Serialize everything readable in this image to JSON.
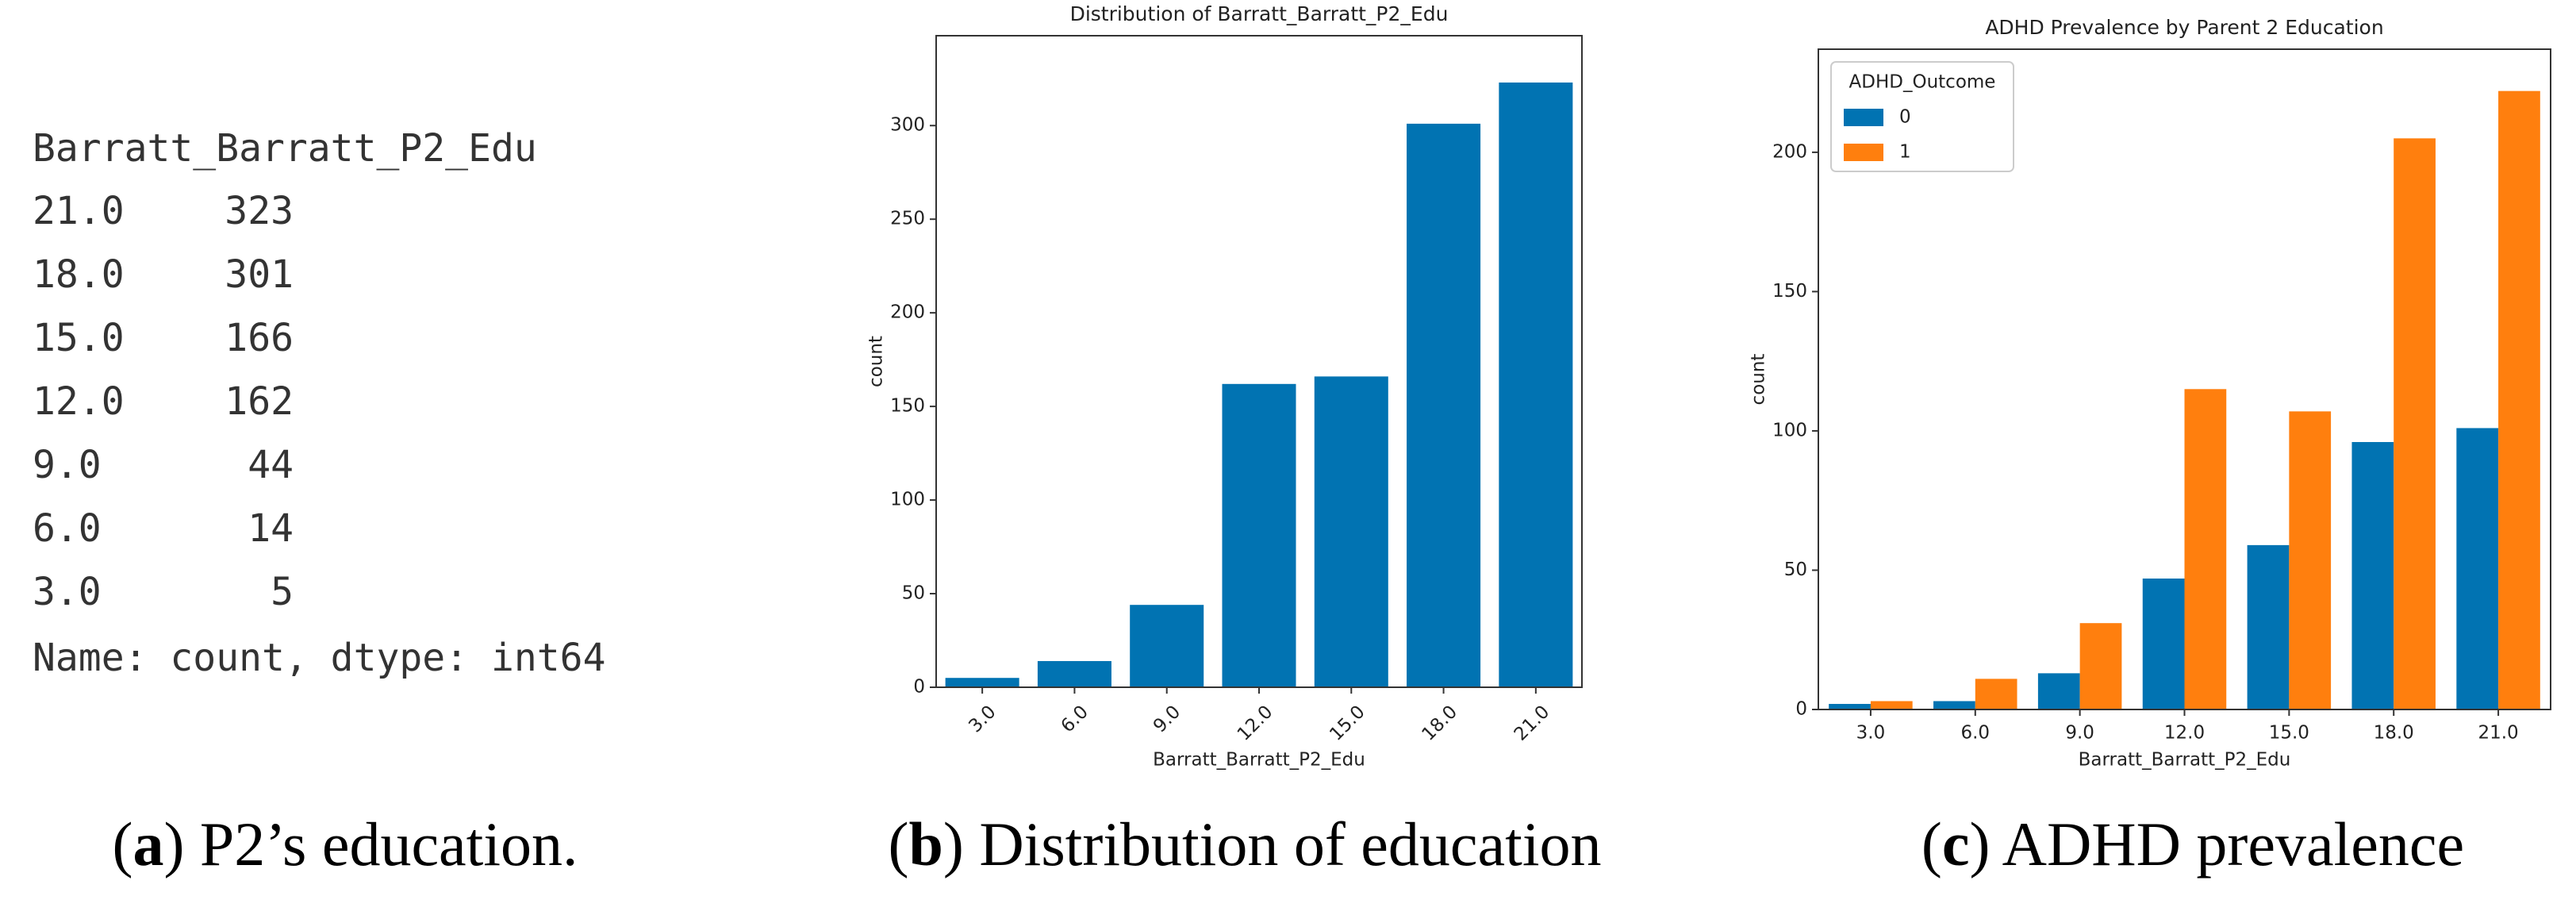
{
  "console_output": {
    "header": "Barratt_Barratt_P2_Edu",
    "rows": [
      [
        "21.0",
        "323"
      ],
      [
        "18.0",
        "301"
      ],
      [
        "15.0",
        "166"
      ],
      [
        "12.0",
        "162"
      ],
      [
        "9.0",
        "44"
      ],
      [
        "6.0",
        "14"
      ],
      [
        "3.0",
        "5"
      ]
    ],
    "footer": "Name: count, dtype: int64"
  },
  "chart_data": [
    {
      "type": "bar",
      "title": "Distribution of Barratt_Barratt_P2_Edu",
      "x_label": "Barratt_Barratt_P2_Edu",
      "y_label": "count",
      "categories": [
        "3.0",
        "6.0",
        "9.0",
        "12.0",
        "15.0",
        "18.0",
        "21.0"
      ],
      "values": [
        5,
        14,
        44,
        162,
        166,
        301,
        323
      ],
      "color": "#0173b2",
      "ylim": [
        0,
        348
      ],
      "yticks": [
        0,
        50,
        100,
        150,
        200,
        250,
        300
      ],
      "xtick_rotation": 45,
      "grid": false
    },
    {
      "type": "grouped_bar",
      "title": "ADHD Prevalence by Parent 2 Education",
      "x_label": "Barratt_Barratt_P2_Edu",
      "y_label": "count",
      "categories": [
        "3.0",
        "6.0",
        "9.0",
        "12.0",
        "15.0",
        "18.0",
        "21.0"
      ],
      "series": [
        {
          "name": "0",
          "color": "#0173b2",
          "values": [
            2,
            3,
            13,
            47,
            59,
            96,
            101
          ]
        },
        {
          "name": "1",
          "color": "#ff7f0e",
          "values": [
            3,
            11,
            31,
            115,
            107,
            205,
            222
          ]
        }
      ],
      "legend_title": "ADHD_Outcome",
      "legend": "upper left",
      "ylim": [
        0,
        237
      ],
      "yticks": [
        0,
        50,
        100,
        150,
        200
      ],
      "xtick_rotation": 0,
      "grid": false
    }
  ],
  "captions": [
    {
      "open": "(",
      "letter": "a",
      "text": ") P2’s education."
    },
    {
      "open": "(",
      "letter": "b",
      "text": ") Distribution of education"
    },
    {
      "open": "(",
      "letter": "c",
      "text": ") ADHD prevalence"
    }
  ]
}
